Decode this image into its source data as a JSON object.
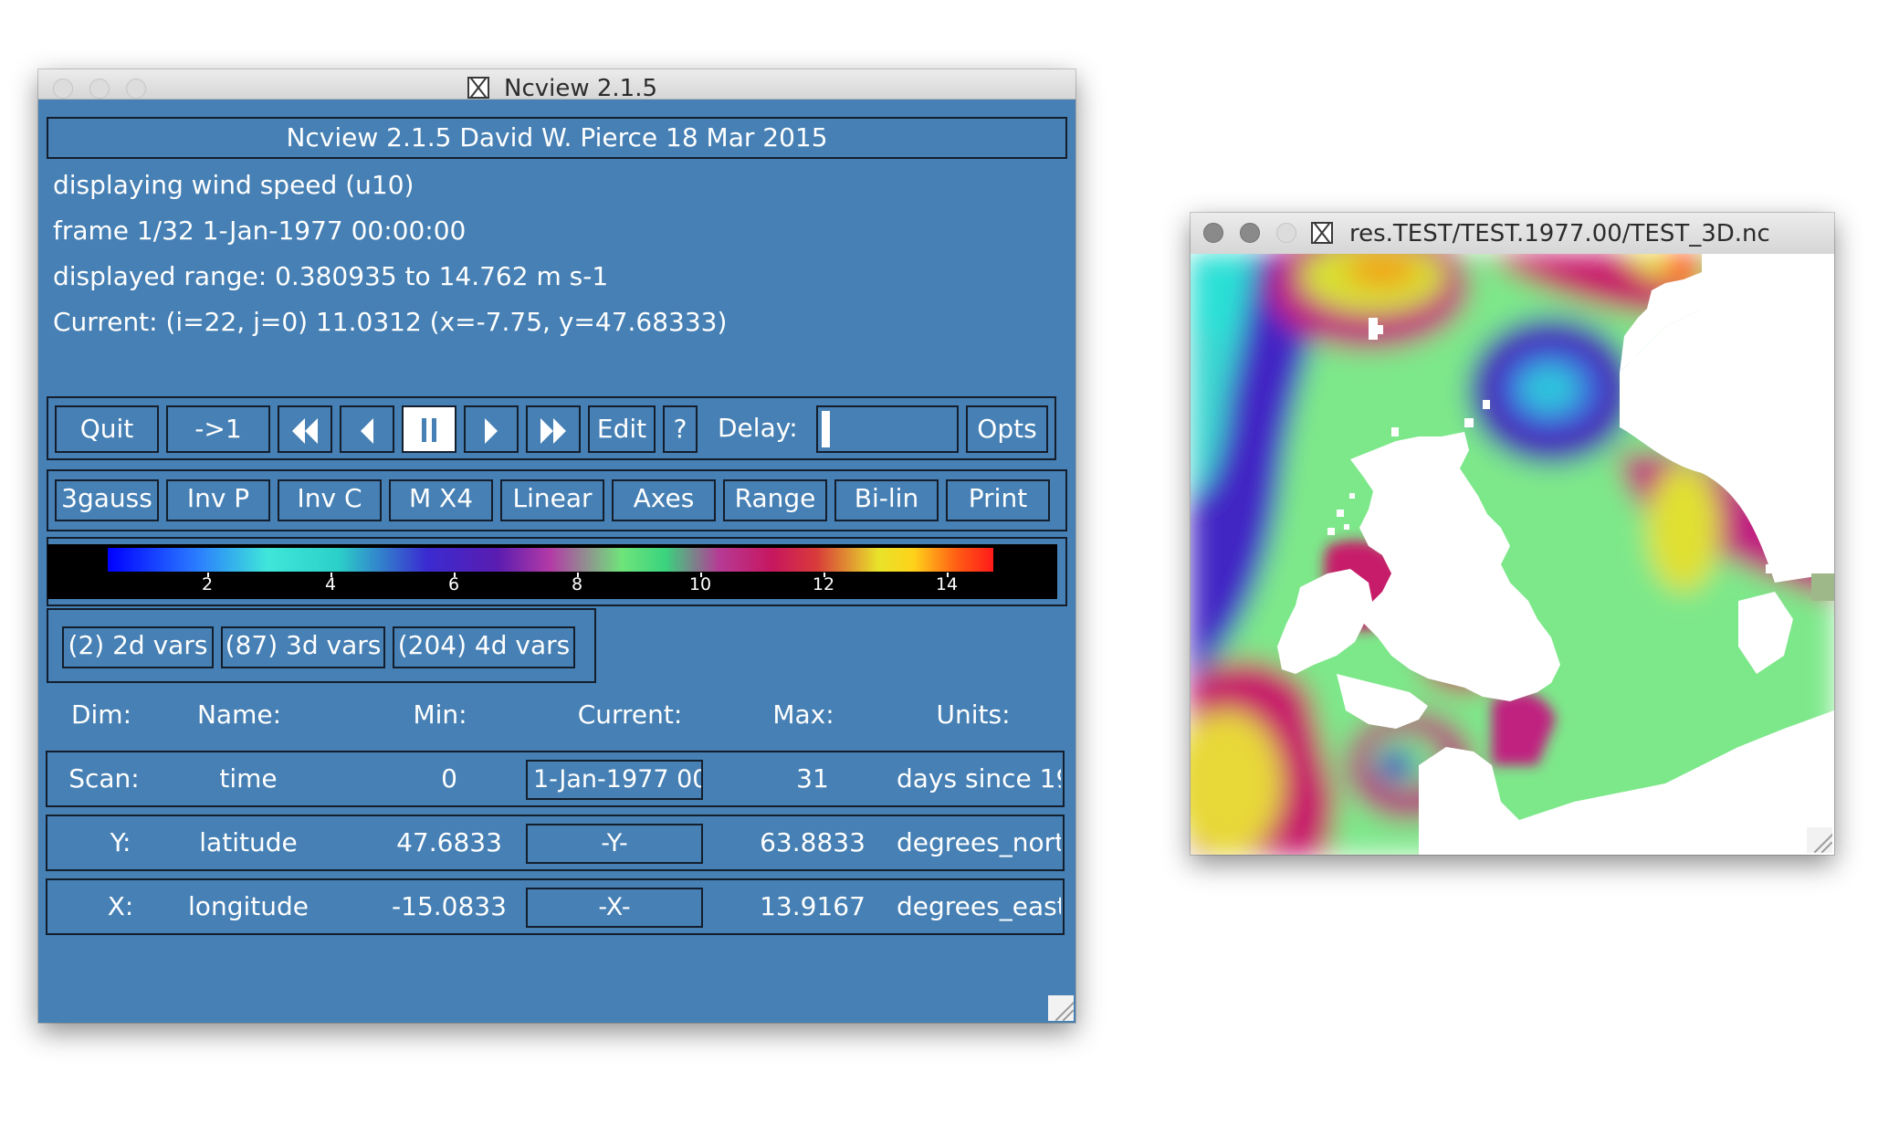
{
  "ncview_window": {
    "title": "Ncview 2.1.5",
    "banner": "Ncview 2.1.5 David W. Pierce  18 Mar 2015",
    "info": {
      "displaying": "displaying wind speed (u10)",
      "frame": "frame 1/32 1-Jan-1977 00:00:00",
      "range": "displayed range: 0.380935 to 14.762 m s-1",
      "current": "Current: (i=22, j=0) 11.0312 (x=-7.75, y=47.68333)"
    },
    "controls": {
      "quit": "Quit",
      "restart": "->1",
      "edit": "Edit",
      "help": "?",
      "delay_label": "Delay:",
      "opts": "Opts",
      "delay_fraction": 0.02
    },
    "options": [
      "3gauss",
      "Inv P",
      "Inv C",
      "M X4",
      "Linear",
      "Axes",
      "Range",
      "Bi-lin",
      "Print"
    ],
    "colorbar": {
      "ticks": [
        "2",
        "4",
        "6",
        "8",
        "10",
        "12",
        "14"
      ]
    },
    "varsets": [
      "(2) 2d vars",
      "(87) 3d vars",
      "(204) 4d vars"
    ],
    "dim_headers": {
      "dim": "Dim:",
      "name": "Name:",
      "min": "Min:",
      "current": "Current:",
      "max": "Max:",
      "units": "Units:"
    },
    "dims": [
      {
        "dim": "Scan:",
        "name": "time",
        "min": "0",
        "current": "1-Jan-1977 00",
        "max": "31",
        "units": "days since 19"
      },
      {
        "dim": "Y:",
        "name": "latitude",
        "min": "47.6833",
        "current": "-Y-",
        "max": "63.8833",
        "units": "degrees_nort"
      },
      {
        "dim": "X:",
        "name": "longitude",
        "min": "-15.0833",
        "current": "-X-",
        "max": "13.9167",
        "units": "degrees_east"
      }
    ]
  },
  "map_window": {
    "title": "res.TEST/TEST.1977.00/TEST_3D.nc"
  },
  "colors": {
    "panel": "#4680b4",
    "border": "#141e2c",
    "text": "#ffffff"
  },
  "icons": [
    "close-light",
    "minimize-light",
    "zoom-light",
    "x11-icon",
    "rewind-icon",
    "step-back-icon",
    "pause-icon",
    "step-forward-icon",
    "fast-forward-icon",
    "resize-grip-icon"
  ]
}
